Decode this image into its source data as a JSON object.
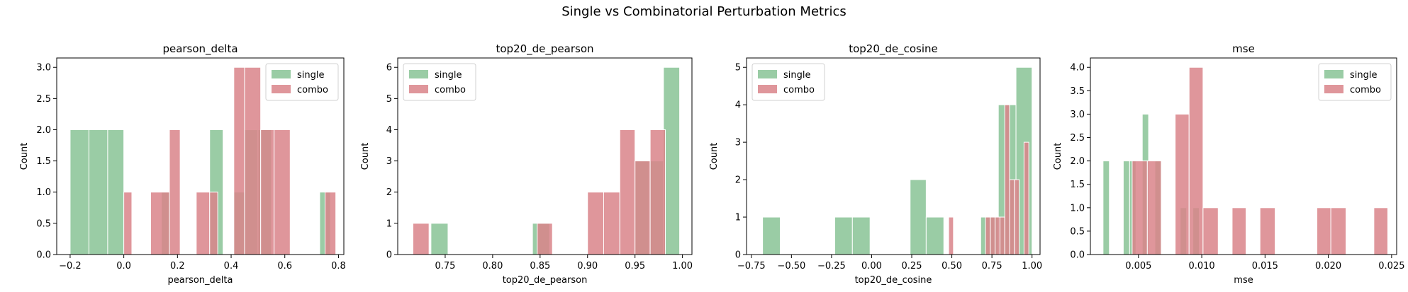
{
  "suptitle": "Single vs Combinatorial Perturbation Metrics",
  "colors": {
    "single": "#8fc79b",
    "combo": "#d98489",
    "single_alpha": 0.9,
    "combo_alpha": 0.85
  },
  "chart_data": [
    {
      "type": "histogram",
      "title": "pearson_delta",
      "xlabel": "pearson_delta",
      "ylabel": "Count",
      "xlim": [
        -0.25,
        0.82
      ],
      "ylim": [
        0,
        3.15
      ],
      "xticks": [
        -0.2,
        0.0,
        0.2,
        0.4,
        0.6,
        0.8
      ],
      "xtick_labels": [
        "−0.2",
        "0.0",
        "0.2",
        "0.4",
        "0.6",
        "0.8"
      ],
      "yticks": [
        0,
        0.5,
        1.0,
        1.5,
        2.0,
        2.5,
        3.0
      ],
      "ytick_labels": [
        "0.0",
        "0.5",
        "1.0",
        "1.5",
        "2.0",
        "2.5",
        "3.0"
      ],
      "legend": {
        "position": "top-right",
        "entries": [
          "single",
          "combo"
        ]
      },
      "series": [
        {
          "name": "single",
          "bins": [
            [
              -0.2,
              -0.13,
              2
            ],
            [
              -0.13,
              -0.06,
              2
            ],
            [
              -0.06,
              0.0,
              2
            ],
            [
              0.14,
              0.17,
              1
            ],
            [
              0.32,
              0.37,
              2
            ],
            [
              0.41,
              0.45,
              1
            ],
            [
              0.45,
              0.5,
              2
            ],
            [
              0.5,
              0.55,
              2
            ],
            [
              0.73,
              0.77,
              1
            ]
          ]
        },
        {
          "name": "combo",
          "bins": [
            [
              0.0,
              0.03,
              1
            ],
            [
              0.1,
              0.17,
              1
            ],
            [
              0.17,
              0.21,
              2
            ],
            [
              0.27,
              0.32,
              1
            ],
            [
              0.32,
              0.35,
              1
            ],
            [
              0.41,
              0.45,
              3
            ],
            [
              0.45,
              0.51,
              3
            ],
            [
              0.51,
              0.56,
              2
            ],
            [
              0.56,
              0.62,
              2
            ],
            [
              0.75,
              0.79,
              1
            ]
          ]
        }
      ]
    },
    {
      "type": "histogram",
      "title": "top20_de_pearson",
      "xlabel": "top20_de_pearson",
      "ylabel": "Count",
      "xlim": [
        0.7,
        1.01
      ],
      "ylim": [
        0,
        6.3
      ],
      "xticks": [
        0.75,
        0.8,
        0.85,
        0.9,
        0.95,
        1.0
      ],
      "xtick_labels": [
        "0.75",
        "0.80",
        "0.85",
        "0.90",
        "0.95",
        "1.00"
      ],
      "yticks": [
        0,
        1,
        2,
        3,
        4,
        5,
        6
      ],
      "ytick_labels": [
        "0",
        "1",
        "2",
        "3",
        "4",
        "5",
        "6"
      ],
      "legend": {
        "position": "top-left",
        "entries": [
          "single",
          "combo"
        ]
      },
      "series": [
        {
          "name": "single",
          "bins": [
            [
              0.735,
              0.753,
              1
            ],
            [
              0.842,
              0.86,
              1
            ],
            [
              0.95,
              0.965,
              3
            ],
            [
              0.965,
              0.98,
              3
            ],
            [
              0.98,
              0.997,
              6
            ]
          ]
        },
        {
          "name": "combo",
          "bins": [
            [
              0.716,
              0.733,
              1
            ],
            [
              0.847,
              0.863,
              1
            ],
            [
              0.9,
              0.917,
              2
            ],
            [
              0.917,
              0.934,
              2
            ],
            [
              0.934,
              0.95,
              4
            ],
            [
              0.95,
              0.966,
              3
            ],
            [
              0.966,
              0.982,
              4
            ]
          ]
        }
      ]
    },
    {
      "type": "histogram",
      "title": "top20_de_cosine",
      "xlabel": "top20_de_cosine",
      "ylabel": "Count",
      "xlim": [
        -0.78,
        1.05
      ],
      "ylim": [
        0,
        5.25
      ],
      "xticks": [
        -0.75,
        -0.5,
        -0.25,
        0.0,
        0.25,
        0.5,
        0.75,
        1.0
      ],
      "xtick_labels": [
        "−0.75",
        "−0.50",
        "−0.25",
        "0.00",
        "0.25",
        "0.50",
        "0.75",
        "1.00"
      ],
      "yticks": [
        0,
        1,
        2,
        3,
        4,
        5
      ],
      "ytick_labels": [
        "0",
        "1",
        "2",
        "3",
        "4",
        "5"
      ],
      "legend": {
        "position": "top-left",
        "entries": [
          "single",
          "combo"
        ]
      },
      "series": [
        {
          "name": "single",
          "bins": [
            [
              -0.68,
              -0.57,
              1
            ],
            [
              -0.23,
              -0.12,
              1
            ],
            [
              -0.12,
              -0.01,
              1
            ],
            [
              0.24,
              0.34,
              2
            ],
            [
              0.34,
              0.45,
              1
            ],
            [
              0.68,
              0.79,
              1
            ],
            [
              0.79,
              0.9,
              4
            ],
            [
              0.9,
              1.0,
              5
            ]
          ]
        },
        {
          "name": "combo",
          "bins": [
            [
              0.48,
              0.51,
              1
            ],
            [
              0.71,
              0.74,
              1
            ],
            [
              0.74,
              0.77,
              1
            ],
            [
              0.77,
              0.8,
              1
            ],
            [
              0.8,
              0.83,
              1
            ],
            [
              0.83,
              0.86,
              4
            ],
            [
              0.86,
              0.89,
              2
            ],
            [
              0.89,
              0.92,
              2
            ],
            [
              0.95,
              0.98,
              3
            ]
          ]
        }
      ]
    },
    {
      "type": "histogram",
      "title": "mse",
      "xlabel": "mse",
      "ylabel": "Count",
      "xlim": [
        0.0012,
        0.0254
      ],
      "ylim": [
        0,
        4.2
      ],
      "xticks": [
        0.005,
        0.01,
        0.015,
        0.02,
        0.025
      ],
      "xtick_labels": [
        "0.005",
        "0.010",
        "0.015",
        "0.020",
        "0.025"
      ],
      "yticks": [
        0,
        0.5,
        1.0,
        1.5,
        2.0,
        2.5,
        3.0,
        3.5,
        4.0
      ],
      "ytick_labels": [
        "0.0",
        "0.5",
        "1.0",
        "1.5",
        "2.0",
        "2.5",
        "3.0",
        "3.5",
        "4.0"
      ],
      "legend": {
        "position": "top-right",
        "entries": [
          "single",
          "combo"
        ]
      },
      "series": [
        {
          "name": "single",
          "bins": [
            [
              0.0022,
              0.0027,
              2
            ],
            [
              0.0038,
              0.0043,
              2
            ],
            [
              0.0043,
              0.0048,
              2
            ],
            [
              0.0053,
              0.0058,
              3
            ],
            [
              0.0063,
              0.0068,
              2
            ],
            [
              0.0083,
              0.0088,
              1
            ],
            [
              0.0093,
              0.0098,
              1
            ]
          ]
        },
        {
          "name": "combo",
          "bins": [
            [
              0.0045,
              0.0057,
              2
            ],
            [
              0.0057,
              0.0068,
              2
            ],
            [
              0.0079,
              0.009,
              3
            ],
            [
              0.009,
              0.0101,
              4
            ],
            [
              0.0101,
              0.0113,
              1
            ],
            [
              0.0124,
              0.0135,
              1
            ],
            [
              0.0146,
              0.0158,
              1
            ],
            [
              0.0191,
              0.0202,
              1
            ],
            [
              0.0202,
              0.0214,
              1
            ],
            [
              0.0236,
              0.0247,
              1
            ]
          ]
        }
      ]
    }
  ]
}
